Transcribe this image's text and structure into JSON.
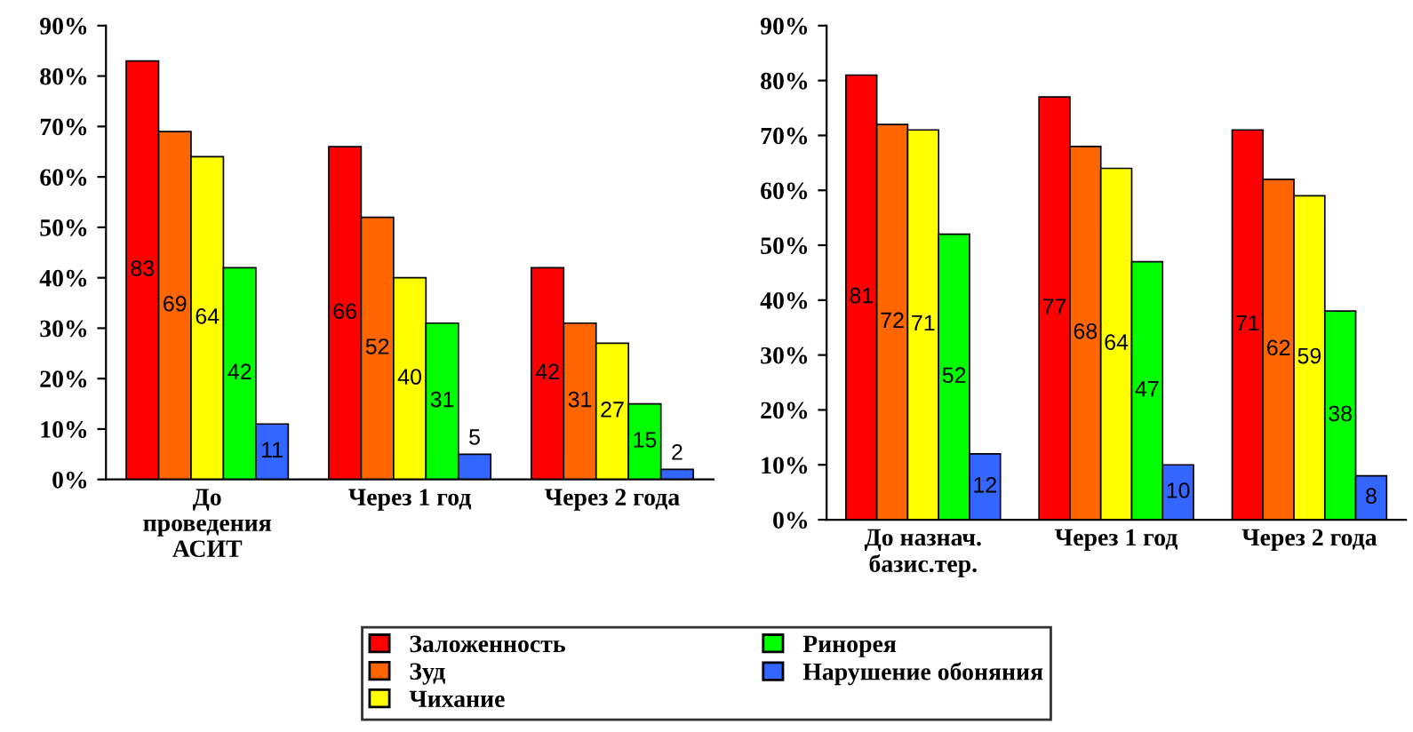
{
  "chart_data": [
    {
      "type": "bar",
      "categories": [
        "До\nпроведения\nАСИТ",
        "Через 1 год",
        "Через 2 года"
      ],
      "ylim": [
        0,
        90
      ],
      "yticks": [
        {
          "value": 0,
          "label": "0%"
        },
        {
          "value": 10,
          "label": "10%"
        },
        {
          "value": 20,
          "label": "20%"
        },
        {
          "value": 30,
          "label": "30%"
        },
        {
          "value": 40,
          "label": "40%"
        },
        {
          "value": 50,
          "label": "50%"
        },
        {
          "value": 60,
          "label": "60%"
        },
        {
          "value": 70,
          "label": "70%"
        },
        {
          "value": 80,
          "label": "80%"
        },
        {
          "value": 90,
          "label": "90%"
        }
      ],
      "data_labels": true,
      "legend": "bottom",
      "grid": false,
      "series": [
        {
          "name": "Заложенность",
          "color": "#ff0000",
          "values": [
            83,
            66,
            42
          ]
        },
        {
          "name": "Зуд",
          "color": "#ff6600",
          "values": [
            69,
            52,
            31
          ]
        },
        {
          "name": "Чихание",
          "color": "#ffff00",
          "values": [
            64,
            40,
            27
          ]
        },
        {
          "name": "Ринорея",
          "color": "#00ff00",
          "values": [
            42,
            31,
            15
          ]
        },
        {
          "name": "Нарушение обоняния",
          "color": "#3366ff",
          "values": [
            11,
            5,
            2
          ]
        }
      ]
    },
    {
      "type": "bar",
      "categories": [
        "До назнач.\nбазис.тер.",
        "Через 1 год",
        "Через 2 года"
      ],
      "ylim": [
        0,
        90
      ],
      "yticks": [
        {
          "value": 0,
          "label": "0%"
        },
        {
          "value": 10,
          "label": "10%"
        },
        {
          "value": 20,
          "label": "20%"
        },
        {
          "value": 30,
          "label": "30%"
        },
        {
          "value": 40,
          "label": "40%"
        },
        {
          "value": 50,
          "label": "50%"
        },
        {
          "value": 60,
          "label": "60%"
        },
        {
          "value": 70,
          "label": "70%"
        },
        {
          "value": 80,
          "label": "80%"
        },
        {
          "value": 90,
          "label": "90%"
        }
      ],
      "data_labels": true,
      "legend": "bottom",
      "grid": false,
      "series": [
        {
          "name": "Заложенность",
          "color": "#ff0000",
          "values": [
            81,
            77,
            71
          ]
        },
        {
          "name": "Зуд",
          "color": "#ff6600",
          "values": [
            72,
            68,
            62
          ]
        },
        {
          "name": "Чихание",
          "color": "#ffff00",
          "values": [
            71,
            64,
            59
          ]
        },
        {
          "name": "Ринорея",
          "color": "#00ff00",
          "values": [
            52,
            47,
            38
          ]
        },
        {
          "name": "Нарушение обоняния",
          "color": "#3366ff",
          "values": [
            12,
            10,
            8
          ]
        }
      ]
    }
  ]
}
